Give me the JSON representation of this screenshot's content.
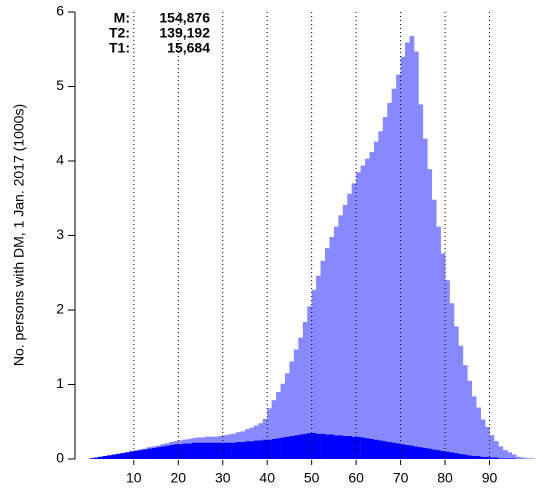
{
  "chart_data": {
    "type": "histogram",
    "stacked": true,
    "y_label": "No. persons with DM, 1 Jan. 2017 (1000s)",
    "total": {
      "name": "M:",
      "color": "#555555",
      "count": {
        "value": 154876,
        "label": "154,876"
      }
    },
    "bins": [
      0,
      1,
      2,
      3,
      4,
      5,
      6,
      7,
      8,
      9,
      10,
      11,
      12,
      13,
      14,
      15,
      16,
      17,
      18,
      19,
      20,
      21,
      22,
      23,
      24,
      25,
      26,
      27,
      28,
      29,
      30,
      31,
      32,
      33,
      34,
      35,
      36,
      37,
      38,
      39,
      40,
      41,
      42,
      43,
      44,
      45,
      46,
      47,
      48,
      49,
      50,
      51,
      52,
      53,
      54,
      55,
      56,
      57,
      58,
      59,
      60,
      61,
      62,
      63,
      64,
      65,
      66,
      67,
      68,
      69,
      70,
      71,
      72,
      73,
      74,
      75,
      76,
      77,
      78,
      79,
      80,
      81,
      82,
      83,
      84,
      85,
      86,
      87,
      88,
      89,
      90,
      91,
      92,
      93,
      94,
      95,
      96,
      97,
      98,
      99,
      100
    ],
    "series": [
      {
        "name": "T1:",
        "color": "#0000ff",
        "count": {
          "value": 15684,
          "label": "15,684"
        },
        "values": [
          0.01,
          0.02,
          0.03,
          0.04,
          0.05,
          0.06,
          0.07,
          0.08,
          0.09,
          0.1,
          0.11,
          0.12,
          0.13,
          0.14,
          0.15,
          0.16,
          0.17,
          0.18,
          0.19,
          0.2,
          0.2,
          0.21,
          0.21,
          0.22,
          0.22,
          0.22,
          0.22,
          0.22,
          0.22,
          0.22,
          0.22,
          0.22,
          0.22,
          0.23,
          0.23,
          0.24,
          0.24,
          0.25,
          0.25,
          0.26,
          0.26,
          0.27,
          0.28,
          0.29,
          0.3,
          0.31,
          0.32,
          0.33,
          0.34,
          0.35,
          0.35,
          0.34,
          0.34,
          0.33,
          0.33,
          0.32,
          0.32,
          0.31,
          0.31,
          0.3,
          0.3,
          0.29,
          0.28,
          0.27,
          0.26,
          0.25,
          0.24,
          0.23,
          0.22,
          0.21,
          0.2,
          0.19,
          0.18,
          0.17,
          0.16,
          0.15,
          0.14,
          0.13,
          0.12,
          0.11,
          0.1,
          0.09,
          0.08,
          0.07,
          0.06,
          0.05,
          0.04,
          0.04,
          0.03,
          0.03,
          0.02,
          0.02,
          0.01,
          0.01,
          0.01,
          0.01,
          0,
          0,
          0,
          0
        ]
      },
      {
        "name": "T2:",
        "color": "#8888ff",
        "count": {
          "value": 139192,
          "label": "139,192"
        },
        "values": [
          0,
          0,
          0,
          0,
          0,
          0,
          0,
          0,
          0,
          0.01,
          0.01,
          0.01,
          0.01,
          0.02,
          0.02,
          0.02,
          0.03,
          0.03,
          0.04,
          0.04,
          0.05,
          0.05,
          0.06,
          0.06,
          0.07,
          0.07,
          0.08,
          0.08,
          0.08,
          0.09,
          0.1,
          0.11,
          0.12,
          0.13,
          0.14,
          0.16,
          0.18,
          0.2,
          0.23,
          0.28,
          0.42,
          0.52,
          0.62,
          0.72,
          0.85,
          1.0,
          1.15,
          1.3,
          1.5,
          1.7,
          1.92,
          2.12,
          2.32,
          2.5,
          2.65,
          2.8,
          2.95,
          3.1,
          3.25,
          3.4,
          3.55,
          3.65,
          3.75,
          3.85,
          4.0,
          4.15,
          4.35,
          4.55,
          4.75,
          4.95,
          5.2,
          5.4,
          5.5,
          5.3,
          4.6,
          4.15,
          3.75,
          3.35,
          3.0,
          2.65,
          2.3,
          2.0,
          1.7,
          1.45,
          1.2,
          1.0,
          0.8,
          0.65,
          0.5,
          0.4,
          0.3,
          0.22,
          0.16,
          0.11,
          0.08,
          0.05,
          0.03,
          0.02,
          0.01,
          0.01
        ]
      }
    ],
    "xlim": [
      -3,
      100
    ],
    "xticks": [
      10,
      20,
      30,
      40,
      50,
      60,
      70,
      80,
      90
    ],
    "ylim": [
      0,
      6
    ],
    "yticks": [
      0,
      1,
      2,
      3,
      4,
      5,
      6
    ],
    "grid": true
  }
}
